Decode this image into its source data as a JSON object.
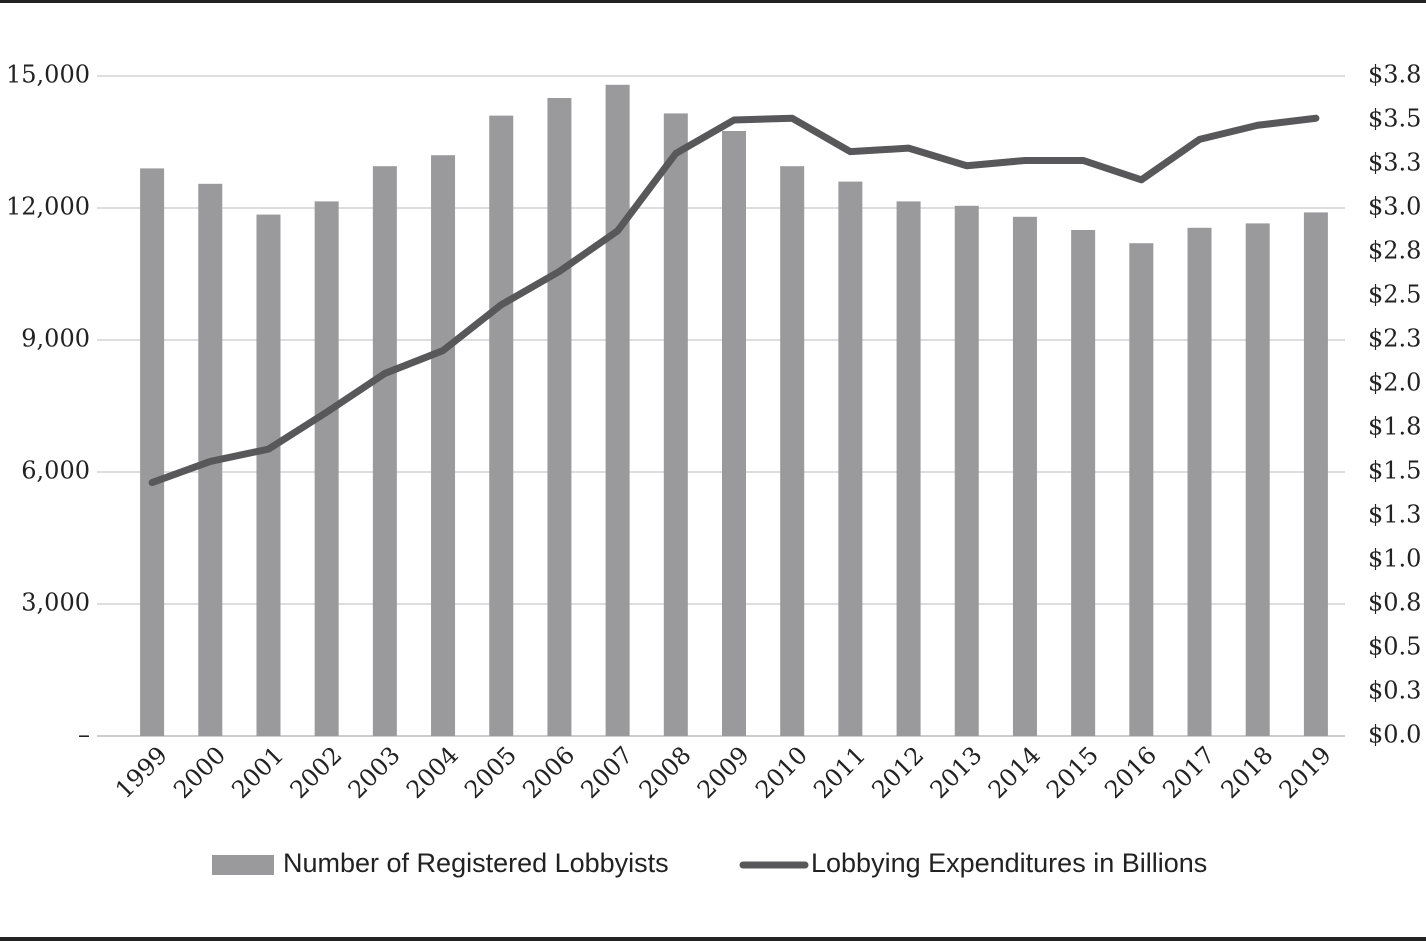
{
  "chart_data": {
    "type": "bar-line",
    "categories": [
      "1999",
      "2000",
      "2001",
      "2002",
      "2003",
      "2004",
      "2005",
      "2006",
      "2007",
      "2008",
      "2009",
      "2010",
      "2011",
      "2012",
      "2013",
      "2014",
      "2015",
      "2016",
      "2017",
      "2018",
      "2019"
    ],
    "series": [
      {
        "name": "Number of Registered Lobbyists",
        "type": "bar",
        "color": "#9a9a9c",
        "values": [
          12900,
          12550,
          11850,
          12150,
          12950,
          13200,
          14100,
          14500,
          14800,
          14150,
          13750,
          12950,
          12600,
          12150,
          12050,
          11800,
          11500,
          11200,
          11550,
          11650,
          11900
        ]
      },
      {
        "name": "Lobbying Expenditures in Billions",
        "type": "line",
        "axis": "y2",
        "color": "#58585a",
        "values": [
          1.44,
          1.56,
          1.63,
          1.84,
          2.06,
          2.19,
          2.45,
          2.64,
          2.87,
          3.31,
          3.5,
          3.51,
          3.32,
          3.34,
          3.24,
          3.27,
          3.27,
          3.16,
          3.39,
          3.47,
          3.51
        ]
      }
    ],
    "ylim": [
      0,
      15000
    ],
    "yticks": [
      {
        "value": 0,
        "label": "–"
      },
      {
        "value": 3000,
        "label": "3,000"
      },
      {
        "value": 6000,
        "label": "6,000"
      },
      {
        "value": 9000,
        "label": "9,000"
      },
      {
        "value": 12000,
        "label": "12,000"
      },
      {
        "value": 15000,
        "label": "15,000"
      }
    ],
    "y2lim": [
      0,
      3.75
    ],
    "y2ticks": [
      {
        "value": 0,
        "label": "$0.0"
      },
      {
        "value": 0.25,
        "label": "$0.3"
      },
      {
        "value": 0.5,
        "label": "$0.5"
      },
      {
        "value": 0.75,
        "label": "$0.8"
      },
      {
        "value": 1,
        "label": "$1.0"
      },
      {
        "value": 1.25,
        "label": "$1.3"
      },
      {
        "value": 1.5,
        "label": "$1.5"
      },
      {
        "value": 1.75,
        "label": "$1.8"
      },
      {
        "value": 2,
        "label": "$2.0"
      },
      {
        "value": 2.25,
        "label": "$2.3"
      },
      {
        "value": 2.5,
        "label": "$2.5"
      },
      {
        "value": 2.75,
        "label": "$2.8"
      },
      {
        "value": 3,
        "label": "$3.0"
      },
      {
        "value": 3.25,
        "label": "$3.3"
      },
      {
        "value": 3.5,
        "label": "$3.5"
      },
      {
        "value": 3.75,
        "label": "$3.8"
      }
    ],
    "grid": true,
    "legend": "bottom"
  }
}
